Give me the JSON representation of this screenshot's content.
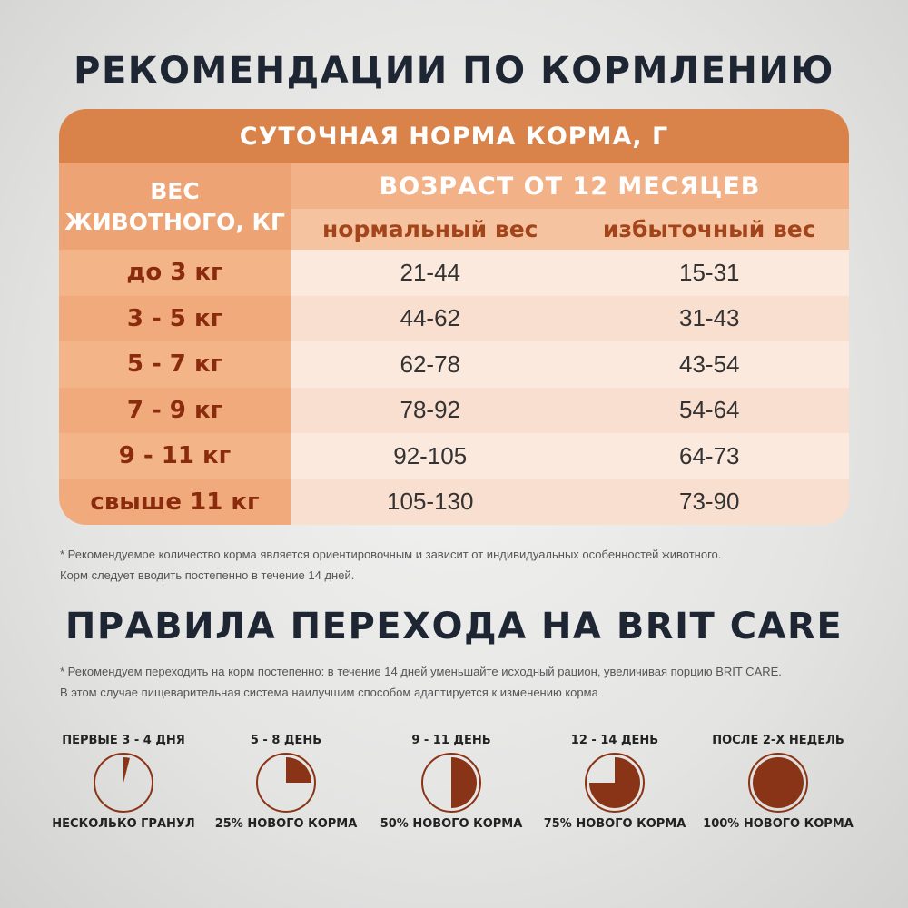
{
  "header": {
    "title": "РЕКОМЕНДАЦИИ ПО КОРМЛЕНИЮ"
  },
  "table": {
    "title": "СУТОЧНАЯ НОРМА КОРМА, Г",
    "weight_header": [
      "ВЕС",
      "ЖИВОТНОГО, КГ"
    ],
    "age_header": "ВОЗРАСТ ОТ 12 МЕСЯЦЕВ",
    "columns": [
      "нормальный вес",
      "избыточный вес"
    ],
    "rows": [
      [
        "до 3 кг",
        "21-44",
        "15-31"
      ],
      [
        "3 - 5 кг",
        "44-62",
        "31-43"
      ],
      [
        "5 - 7 кг",
        "62-78",
        "43-54"
      ],
      [
        "7 - 9 кг",
        "78-92",
        "54-64"
      ],
      [
        "9 - 11 кг",
        "92-105",
        "64-73"
      ],
      [
        "свыше 11 кг",
        "105-130",
        "73-90"
      ]
    ]
  },
  "table_note": [
    "* Рекомендуемое количество корма является ориентировочным и зависит от индивидуальных особенностей животного.",
    "Корм следует вводить постепенно в течение 14 дней."
  ],
  "transition": {
    "title": "ПРАВИЛА ПЕРЕХОДА НА BRIT CARE",
    "note": [
      "* Рекомендуем переходить на корм постепенно: в течение 14 дней уменьшайте исходный рацион, увеличивая порцию BRIT CARE.",
      "В этом случае пищеварительная система наилучшим способом адаптируется к изменению корма"
    ],
    "steps": [
      {
        "period": "ПЕРВЫЕ 3 - 4 ДНЯ",
        "label": "НЕСКОЛЬКО ГРАНУЛ",
        "share": 4
      },
      {
        "period": "5 - 8 ДЕНЬ",
        "label": "25% НОВОГО КОРМА",
        "share": 25
      },
      {
        "period": "9 - 11 ДЕНЬ",
        "label": "50% НОВОГО КОРМА",
        "share": 50
      },
      {
        "period": "12 - 14 ДЕНЬ",
        "label": "75% НОВОГО КОРМА",
        "share": 75
      },
      {
        "period": "ПОСЛЕ 2-Х НЕДЕЛЬ",
        "label": "100% НОВОГО КОРМА",
        "share": 100
      }
    ]
  }
}
